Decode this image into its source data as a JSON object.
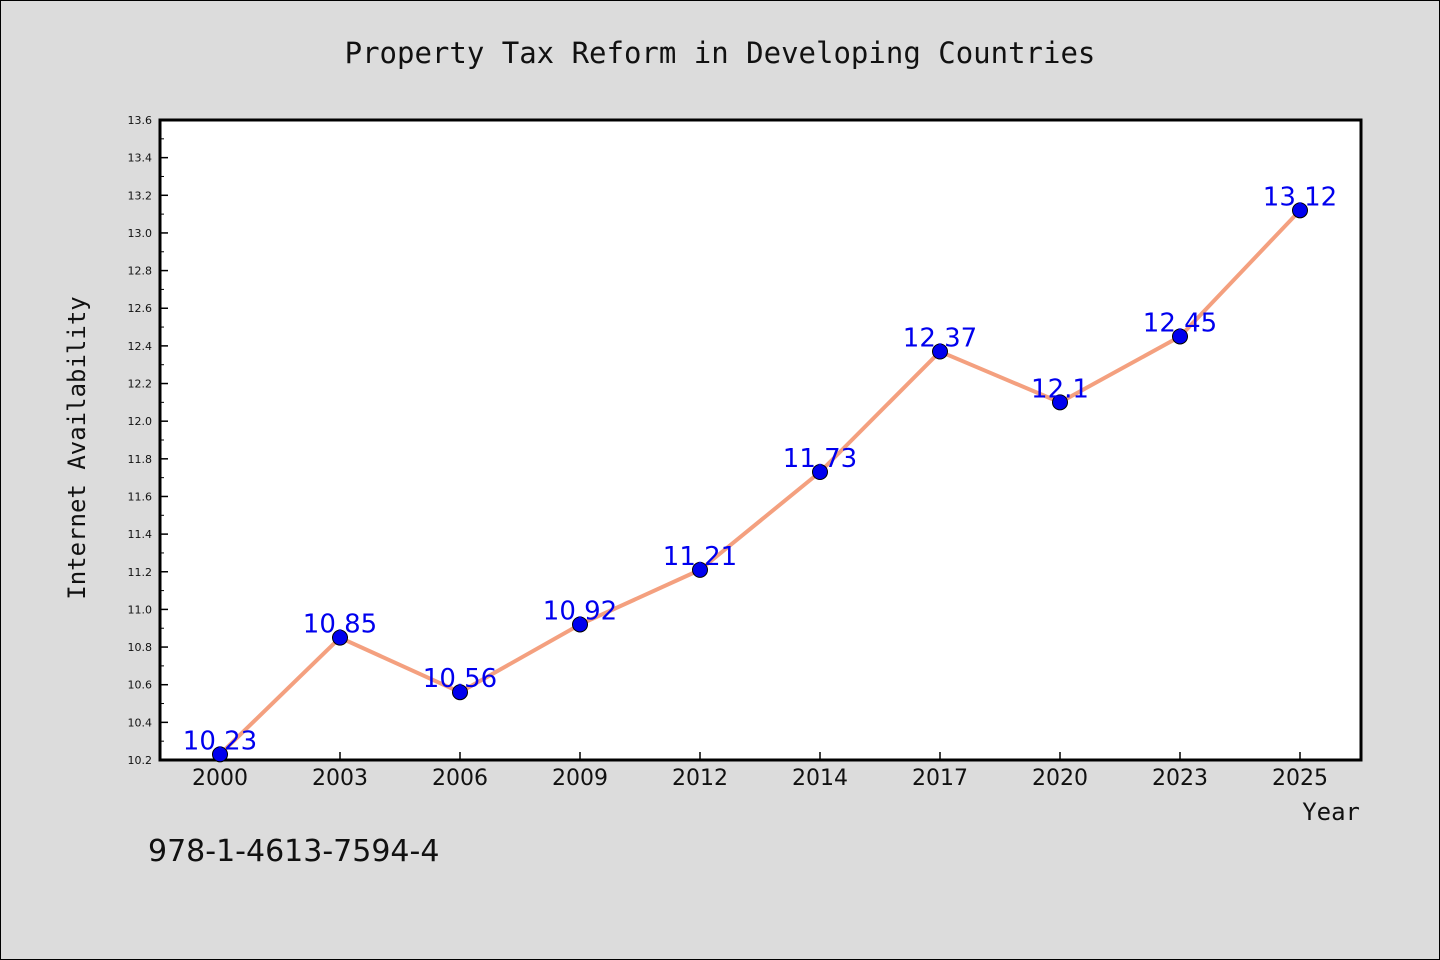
{
  "chart_data": {
    "type": "line",
    "title": "Property Tax Reform in Developing Countries",
    "xlabel": "Year",
    "ylabel": "Internet Availability",
    "categories": [
      "2000",
      "2003",
      "2006",
      "2009",
      "2012",
      "2014",
      "2017",
      "2020",
      "2023",
      "2025"
    ],
    "series": [
      {
        "values": [
          10.23,
          10.85,
          10.56,
          10.92,
          11.21,
          11.73,
          12.37,
          12.1,
          12.45,
          13.12
        ],
        "value_labels": [
          "10.23",
          "10.85",
          "10.56",
          "10.92",
          "11.21",
          "11.73",
          "12.37",
          "12.1",
          "12.45",
          "13.12"
        ]
      }
    ],
    "ylim": [
      10.2,
      13.6
    ],
    "yticks": [
      "10.2",
      "10.4",
      "10.6",
      "10.8",
      "11.0",
      "11.2",
      "11.4",
      "11.6",
      "11.8",
      "12.0",
      "12.2",
      "12.4",
      "12.6",
      "12.8",
      "13.0",
      "13.2",
      "13.4",
      "13.6"
    ],
    "grid": false,
    "colors": {
      "line": "#f4a07f",
      "marker": "#0000ee",
      "label": "#0000ee",
      "background": "#dcdcdc",
      "plot_background": "#ffffff"
    }
  },
  "footer": {
    "code": "978-1-4613-7594-4"
  }
}
